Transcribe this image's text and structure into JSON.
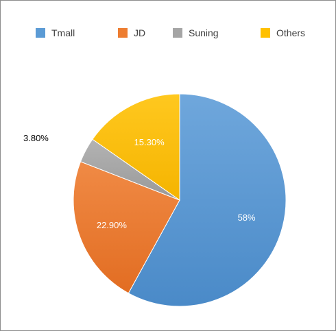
{
  "chart_data": {
    "type": "pie",
    "categories": [
      "Tmall",
      "JD",
      "Suning",
      "Others"
    ],
    "values": [
      58,
      22.9,
      3.8,
      15.3
    ],
    "labels": [
      "58%",
      "22.90%",
      "3.80%",
      "15.30%"
    ],
    "colors": [
      "#5b9bd5",
      "#ed7d31",
      "#a5a5a5",
      "#ffc000"
    ],
    "legend_position": "top",
    "start_angle": "12 o'clock",
    "direction": "clockwise"
  }
}
